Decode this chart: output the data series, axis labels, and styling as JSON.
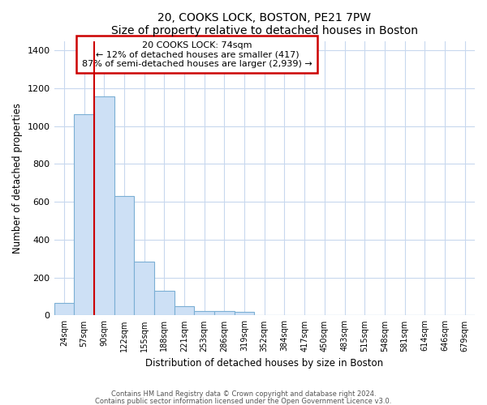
{
  "title": "20, COOKS LOCK, BOSTON, PE21 7PW",
  "subtitle": "Size of property relative to detached houses in Boston",
  "xlabel": "Distribution of detached houses by size in Boston",
  "ylabel": "Number of detached properties",
  "bar_labels": [
    "24sqm",
    "57sqm",
    "90sqm",
    "122sqm",
    "155sqm",
    "188sqm",
    "221sqm",
    "253sqm",
    "286sqm",
    "319sqm",
    "352sqm",
    "384sqm",
    "417sqm",
    "450sqm",
    "483sqm",
    "515sqm",
    "548sqm",
    "581sqm",
    "614sqm",
    "646sqm",
    "679sqm"
  ],
  "bar_heights": [
    65,
    1065,
    1155,
    630,
    285,
    130,
    48,
    22,
    22,
    18,
    0,
    0,
    0,
    0,
    0,
    0,
    0,
    0,
    0,
    0,
    0
  ],
  "bar_color": "#cde0f5",
  "bar_edge_color": "#7bafd4",
  "property_label": "20 COOKS LOCK: 74sqm",
  "pct_smaller": 12,
  "n_smaller": 417,
  "pct_larger_semi": 87,
  "n_larger_semi": 2939,
  "vline_color": "#cc0000",
  "annotation_box_edge": "#cc0000",
  "annotation_box_face": "white",
  "ylim": [
    0,
    1450
  ],
  "yticks": [
    0,
    200,
    400,
    600,
    800,
    1000,
    1200,
    1400
  ],
  "footnote1": "Contains HM Land Registry data © Crown copyright and database right 2024.",
  "footnote2": "Contains public sector information licensed under the Open Government Licence v3.0."
}
